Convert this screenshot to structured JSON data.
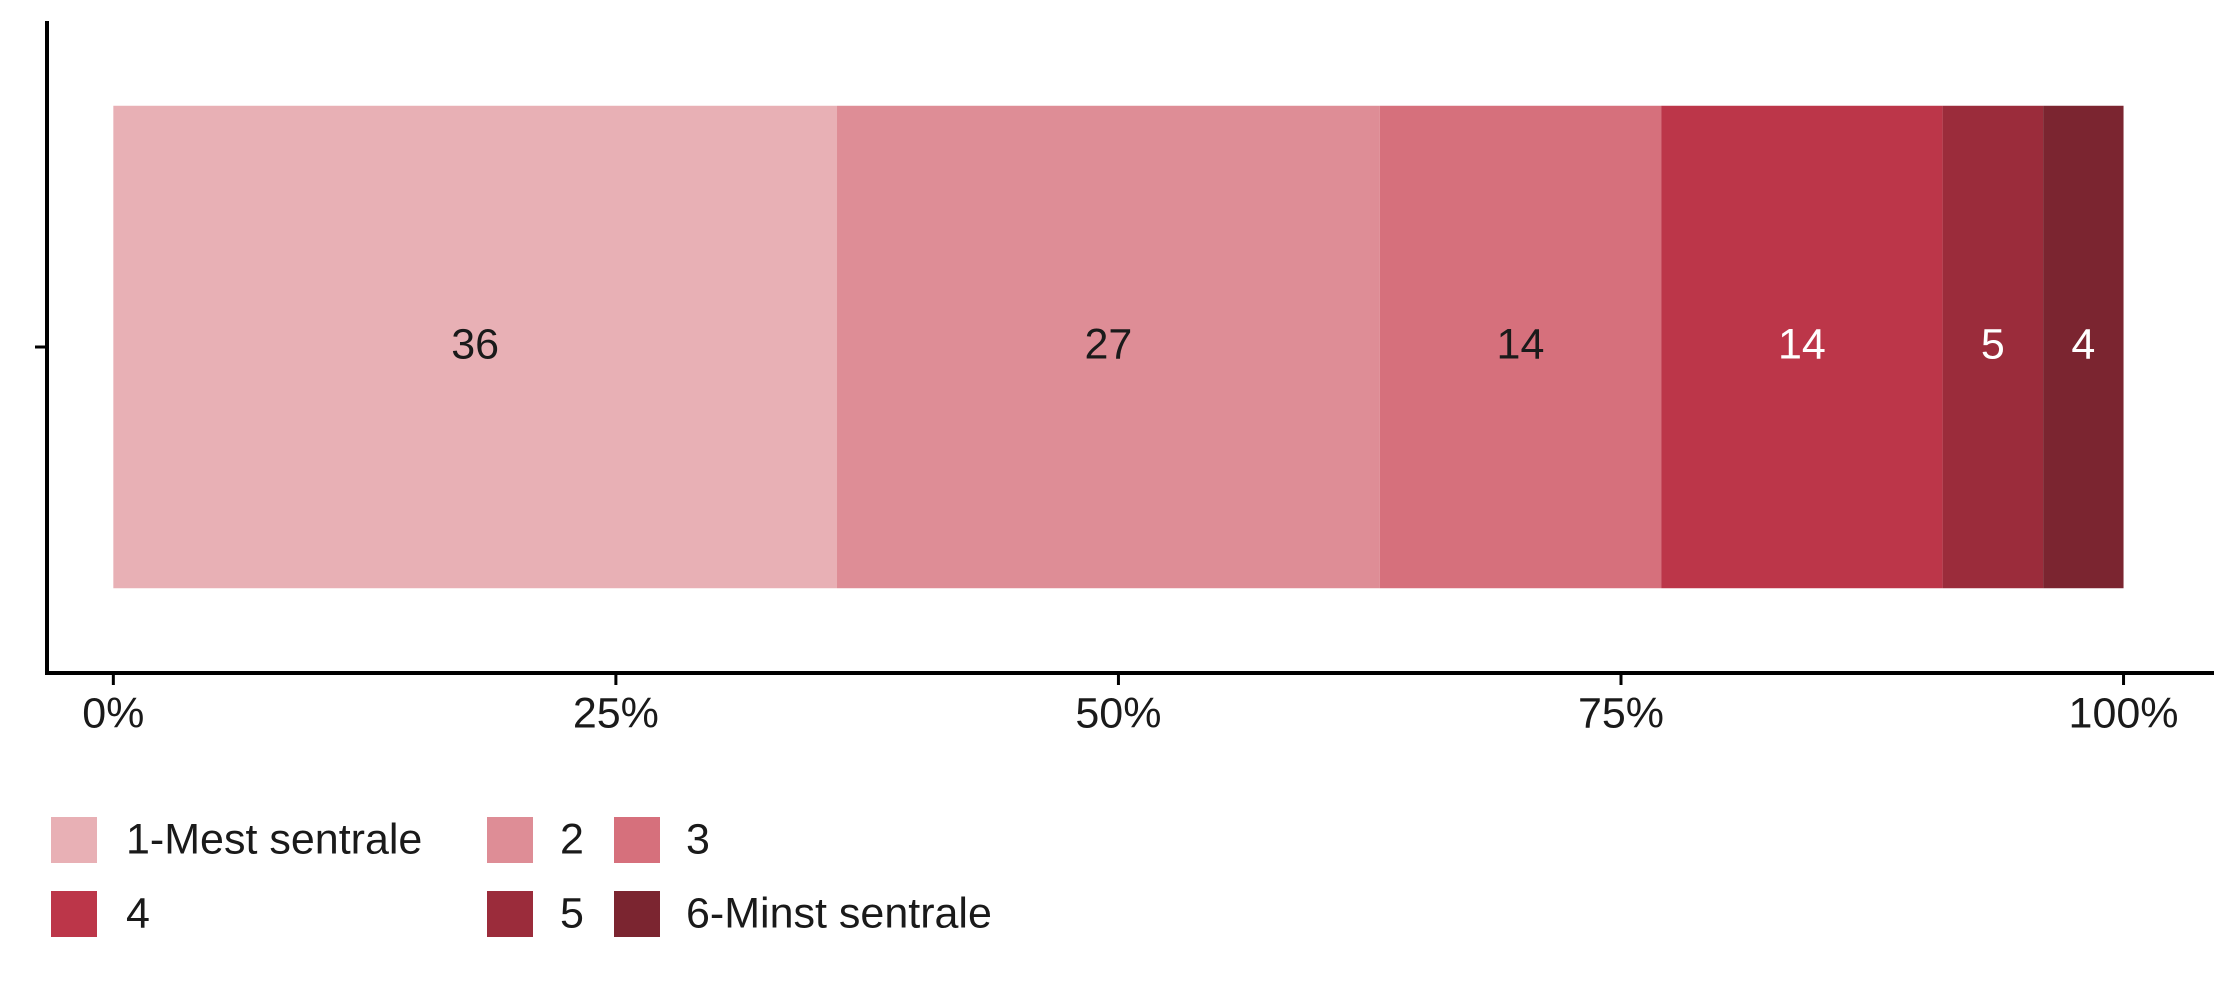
{
  "chart_data": {
    "type": "stacked_barh",
    "categories": [
      null
    ],
    "series": [
      {
        "name": "1-Mest sentrale",
        "color": "#E8B0B5",
        "values": [
          36
        ]
      },
      {
        "name": "2",
        "color": "#DE8D96",
        "values": [
          27
        ]
      },
      {
        "name": "3",
        "color": "#D6707C",
        "values": [
          14
        ]
      },
      {
        "name": "4",
        "color": "#BC3649",
        "values": [
          14
        ]
      },
      {
        "name": "5",
        "color": "#9B2C3B",
        "values": [
          5
        ]
      },
      {
        "name": "6-Minst sentrale",
        "color": "#7B2530",
        "values": [
          4
        ]
      }
    ],
    "xlim": [
      -3.3,
      104.5
    ],
    "xticks": [
      {
        "value": 0,
        "label": "0%"
      },
      {
        "value": 25,
        "label": "25%"
      },
      {
        "value": 50,
        "label": "50%"
      },
      {
        "value": 75,
        "label": "75%"
      },
      {
        "value": 100,
        "label": "100%"
      }
    ],
    "legend": "bottom",
    "grid": false
  }
}
